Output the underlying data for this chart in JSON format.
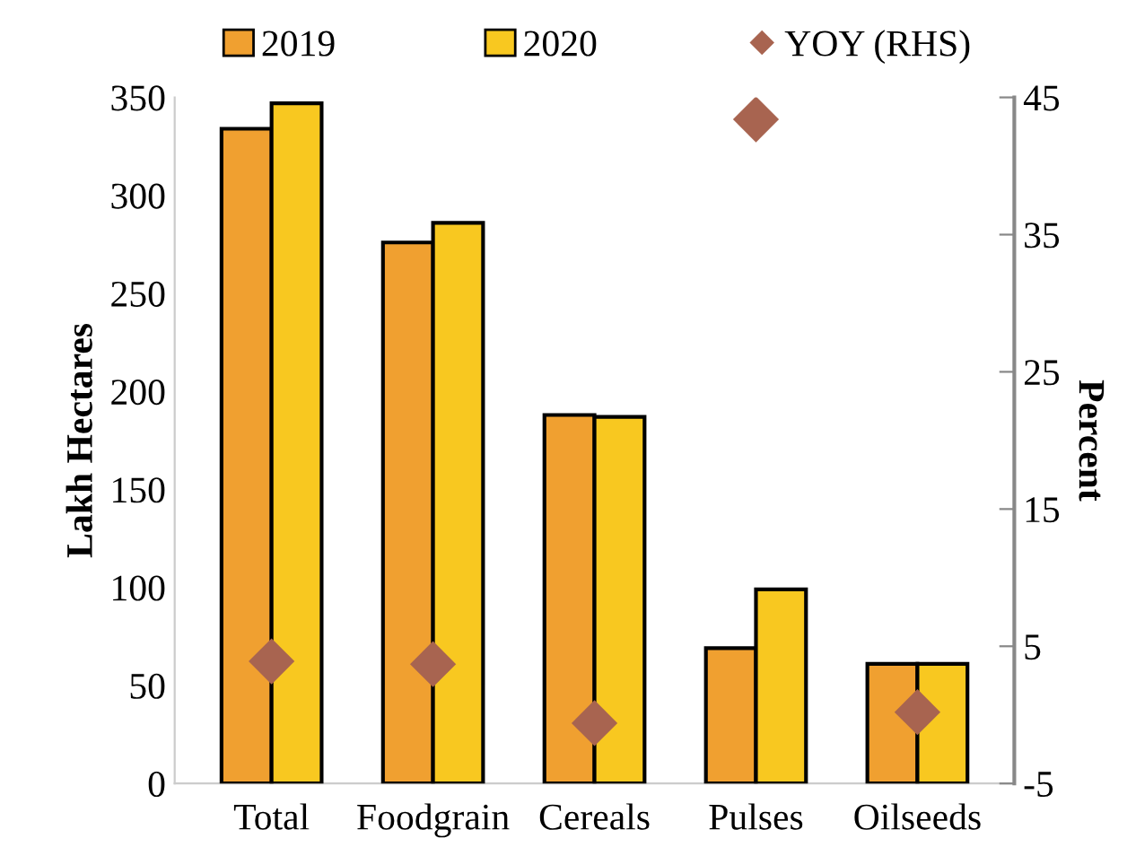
{
  "chart_data": {
    "type": "bar",
    "ylabel": "Lakh Hectares",
    "y2label": "Percent",
    "categories": [
      "Total",
      "Foodgrain",
      "Cereals",
      "Pulses",
      "Oilseeds"
    ],
    "series": [
      {
        "name": "2019",
        "color": "#f0a030",
        "values": [
          334,
          276,
          188,
          69,
          61
        ]
      },
      {
        "name": "2020",
        "color": "#f8c820",
        "values": [
          347,
          286,
          187,
          99,
          61
        ]
      },
      {
        "name": "YOY (RHS)",
        "type": "scatter",
        "axis": "y2",
        "color": "#a86450",
        "x": [
          "Total",
          "Foodgrain",
          "Cereals",
          "Pulses",
          "Oilseeds"
        ],
        "values": [
          3.9,
          3.7,
          -0.6,
          43.4,
          0.2
        ]
      }
    ],
    "ylim": [
      0,
      350
    ],
    "yticks": [
      0,
      50,
      100,
      150,
      200,
      250,
      300,
      350
    ],
    "y2lim": [
      -5,
      45
    ],
    "y2ticks": [
      -5,
      5,
      15,
      25,
      35,
      45
    ],
    "marker": "diamond",
    "legend": "top",
    "grid": false
  }
}
